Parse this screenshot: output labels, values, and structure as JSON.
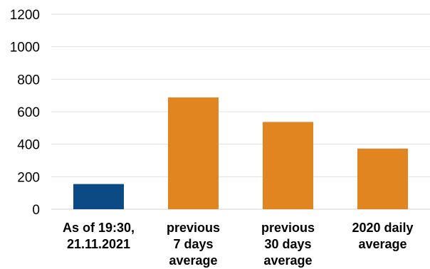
{
  "chart_data": {
    "type": "bar",
    "title": "",
    "xlabel": "",
    "ylabel": "",
    "ylim": [
      0,
      1200
    ],
    "yticks": [
      0,
      200,
      400,
      600,
      800,
      1000,
      1200
    ],
    "grid": true,
    "legend": "none",
    "categories": [
      [
        "As of 19:30,",
        "21.11.2021"
      ],
      [
        "previous",
        "7 days",
        "average"
      ],
      [
        "previous",
        "30 days",
        "average"
      ],
      [
        "2020 daily",
        "average"
      ]
    ],
    "values": [
      155,
      688,
      537,
      373
    ],
    "bar_colors": [
      "#0b4a84",
      "#e08520",
      "#e08520",
      "#e08520"
    ]
  }
}
